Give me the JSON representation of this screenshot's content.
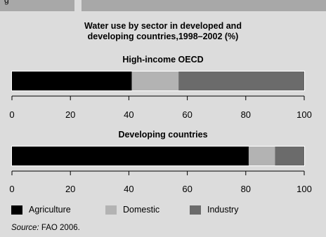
{
  "header": {
    "left_tab_text": "g"
  },
  "chart_data": {
    "type": "bar",
    "orientation": "horizontal",
    "stacked": true,
    "title": "Water use by sector in developed and developing countries,1998–2002 (%)",
    "title_lines": [
      "Water use by sector in developed and",
      "developing countries,1998–2002 (%)"
    ],
    "xlim": [
      0,
      100
    ],
    "ticks": [
      0,
      20,
      40,
      60,
      80,
      100
    ],
    "panels": [
      {
        "title": "High-income OECD",
        "values": {
          "Agriculture": 41,
          "Domestic": 16,
          "Industry": 43
        }
      },
      {
        "title": "Developing countries",
        "values": {
          "Agriculture": 81,
          "Domestic": 9,
          "Industry": 10
        }
      }
    ],
    "series": [
      {
        "name": "Agriculture",
        "color": "#000000"
      },
      {
        "name": "Domestic",
        "color": "#b3b3b3"
      },
      {
        "name": "Industry",
        "color": "#6b6b6b"
      }
    ],
    "legend_position": "bottom"
  },
  "source": {
    "label": "Source:",
    "text": " FAO 2006."
  }
}
